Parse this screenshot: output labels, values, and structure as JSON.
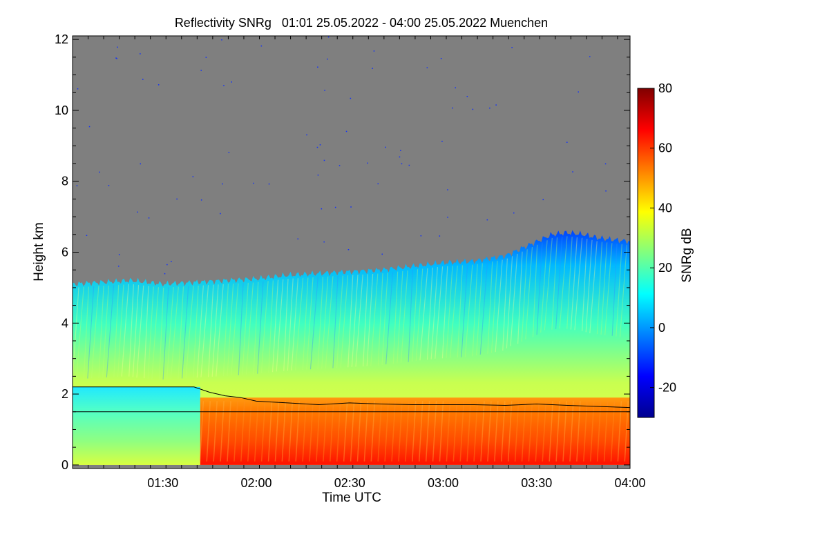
{
  "chart_data": {
    "type": "heatmap",
    "title": "Reflectivity SNRg   01:01 25.05.2022 - 04:00 25.05.2022 Muenchen",
    "xlabel": "Time UTC",
    "ylabel": "Height km",
    "colorbar_label": "SNRg dB",
    "x_range_minutes_utc": [
      61,
      240
    ],
    "y_range_km": [
      -0.1,
      12.1
    ],
    "x_ticks": [
      {
        "minutes": 90,
        "label": "01:30"
      },
      {
        "minutes": 120,
        "label": "02:00"
      },
      {
        "minutes": 150,
        "label": "02:30"
      },
      {
        "minutes": 180,
        "label": "03:00"
      },
      {
        "minutes": 210,
        "label": "03:30"
      },
      {
        "minutes": 240,
        "label": "04:00"
      }
    ],
    "y_ticks": [
      {
        "value": 0,
        "label": "0"
      },
      {
        "value": 2,
        "label": "2"
      },
      {
        "value": 4,
        "label": "4"
      },
      {
        "value": 6,
        "label": "6"
      },
      {
        "value": 8,
        "label": "8"
      },
      {
        "value": 10,
        "label": "10"
      },
      {
        "value": 12,
        "label": "12"
      }
    ],
    "colorbar_range_db": [
      -30,
      80
    ],
    "colorbar_ticks": [
      {
        "value": -20,
        "label": "-20"
      },
      {
        "value": 0,
        "label": "0"
      },
      {
        "value": 20,
        "label": "20"
      },
      {
        "value": 40,
        "label": "40"
      },
      {
        "value": 60,
        "label": "60"
      },
      {
        "value": 80,
        "label": "80"
      }
    ],
    "no_signal_color": "#7f7f7f",
    "colormap": [
      "#00008f",
      "#0000ff",
      "#0080ff",
      "#00ffff",
      "#80ff80",
      "#ffff00",
      "#ff8000",
      "#ff0000",
      "#800000"
    ],
    "cloud_top_km": {
      "minutes": [
        61,
        70,
        80,
        90,
        100,
        110,
        120,
        130,
        140,
        150,
        160,
        170,
        180,
        190,
        200,
        210,
        215,
        220,
        225,
        230,
        235,
        240
      ],
      "values": [
        5.1,
        5.15,
        5.2,
        5.1,
        5.15,
        5.2,
        5.25,
        5.35,
        5.4,
        5.45,
        5.5,
        5.6,
        5.7,
        5.75,
        5.9,
        6.3,
        6.5,
        6.55,
        6.5,
        6.4,
        6.35,
        6.3
      ]
    },
    "aerosol_layer_top_km": {
      "minutes": [
        61,
        95,
        100,
        105,
        110,
        115,
        120,
        130,
        140,
        150,
        160,
        170,
        180,
        190,
        200,
        210,
        220,
        230,
        240
      ],
      "values": [
        2.2,
        2.2,
        2.2,
        2.05,
        1.95,
        1.9,
        1.8,
        1.75,
        1.7,
        1.75,
        1.72,
        1.7,
        1.7,
        1.7,
        1.68,
        1.72,
        1.68,
        1.65,
        1.62
      ]
    },
    "reference_line_km": 1.5,
    "strong_return_start_minutes": 102
  }
}
